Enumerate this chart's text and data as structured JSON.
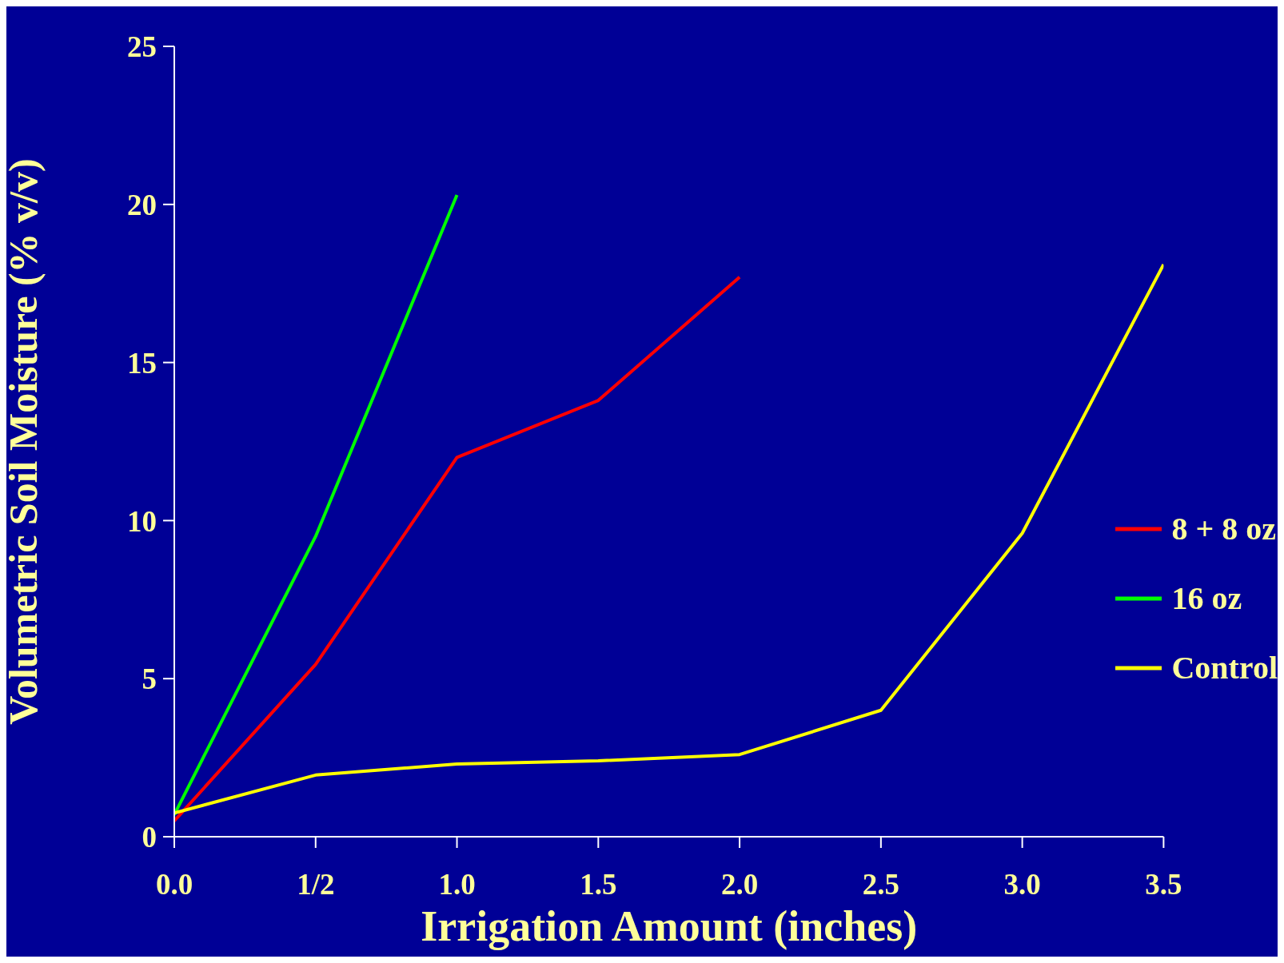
{
  "chart_data": {
    "type": "line",
    "xlabel": "Irrigation Amount (inches)",
    "ylabel": "Volumetric Soil Moisture (% v/v)",
    "x": [
      0,
      0.5,
      1,
      1.5,
      2,
      2.5,
      3,
      3.5
    ],
    "series": [
      {
        "name": "8 + 8 oz",
        "color": "#ff0000",
        "values": [
          0.5,
          5.45,
          12.0,
          13.8,
          17.7,
          null,
          null,
          null
        ]
      },
      {
        "name": "16 oz",
        "color": "#00ff00",
        "values": [
          0.7,
          9.5,
          20.3,
          null,
          null,
          null,
          null,
          null
        ]
      },
      {
        "name": "Control",
        "color": "#ffff00",
        "values": [
          0.75,
          1.95,
          2.3,
          2.4,
          2.6,
          4.0,
          9.6,
          18.1
        ]
      }
    ],
    "xlim": [
      0,
      3.5
    ],
    "xticks": [
      {
        "value": 0,
        "label": "0.0"
      },
      {
        "value": 0.5,
        "label": "1/2"
      },
      {
        "value": 1,
        "label": "1.0"
      },
      {
        "value": 1.5,
        "label": "1.5"
      },
      {
        "value": 2,
        "label": "2.0"
      },
      {
        "value": 2.5,
        "label": "2.5"
      },
      {
        "value": 3,
        "label": "3.0"
      },
      {
        "value": 3.5,
        "label": "3.5"
      }
    ],
    "ylim": [
      0,
      25
    ],
    "yticks": [
      0,
      5,
      10,
      15,
      20,
      25
    ],
    "grid": false,
    "legend": "right",
    "marker": "none",
    "line_style": "solid"
  }
}
